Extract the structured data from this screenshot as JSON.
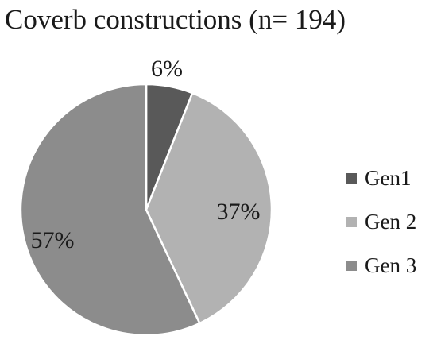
{
  "chart_data": {
    "type": "pie",
    "title": "Coverb constructions (n= 194)",
    "slices": [
      {
        "name": "Gen1",
        "value": 6,
        "label": "6%",
        "color": "#595959"
      },
      {
        "name": "Gen 2",
        "value": 37,
        "label": "37%",
        "color": "#b2b2b2"
      },
      {
        "name": "Gen 3",
        "value": 57,
        "label": "57%",
        "color": "#8c8c8c"
      }
    ],
    "legend_position": "right"
  }
}
